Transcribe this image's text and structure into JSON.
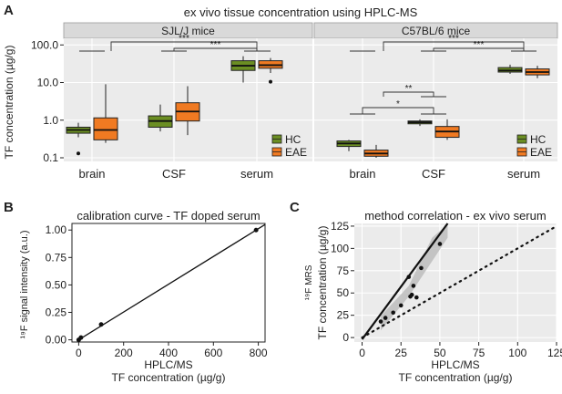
{
  "colors": {
    "hc": "#6b8e23",
    "eae": "#f07a22",
    "panel_bg": "#ebebeb",
    "strip_bg": "#d9d9d9"
  },
  "panel_a": {
    "letter": "A",
    "title": "ex vivo tissue concentration using HPLC-MS",
    "ylabel": "TF concentration (µg/g)",
    "ticks": [
      "100.0",
      "10.0",
      "1.0",
      "0.1"
    ],
    "legend": [
      "HC",
      "EAE"
    ],
    "facets": [
      {
        "strip": "SJL/J mice",
        "categories": [
          "brain",
          "CSF",
          "serum"
        ],
        "sig_labels": [
          "***",
          "***"
        ],
        "boxes": [
          {
            "cat": 0,
            "group": "HC",
            "q": [
              0.35,
              0.45,
              0.55,
              0.65,
              0.85
            ],
            "out": [
              0.13
            ]
          },
          {
            "cat": 0,
            "group": "EAE",
            "q": [
              0.25,
              0.3,
              0.55,
              1.15,
              9.0
            ],
            "out": []
          },
          {
            "cat": 1,
            "group": "HC",
            "q": [
              0.5,
              0.65,
              0.95,
              1.3,
              2.6
            ],
            "out": []
          },
          {
            "cat": 1,
            "group": "EAE",
            "q": [
              0.4,
              0.95,
              1.7,
              2.9,
              8.0
            ],
            "out": []
          },
          {
            "cat": 2,
            "group": "HC",
            "q": [
              10.0,
              21.0,
              28.0,
              38.0,
              50.0
            ],
            "out": []
          },
          {
            "cat": 2,
            "group": "EAE",
            "q": [
              18.0,
              24.0,
              29.0,
              38.0,
              45.0
            ],
            "out": [
              10.5
            ]
          }
        ]
      },
      {
        "strip": "C57BL/6 mice",
        "categories": [
          "brain",
          "CSF",
          "serum"
        ],
        "sig_labels": [
          "***",
          "***",
          "*",
          "**"
        ],
        "boxes": [
          {
            "cat": 0,
            "group": "HC",
            "q": [
              0.15,
              0.2,
              0.24,
              0.28,
              0.3
            ],
            "out": []
          },
          {
            "cat": 0,
            "group": "EAE",
            "q": [
              0.1,
              0.11,
              0.13,
              0.16,
              0.22
            ],
            "out": []
          },
          {
            "cat": 1,
            "group": "HC",
            "q": [
              0.7,
              0.8,
              0.88,
              0.95,
              1.05
            ],
            "out": []
          },
          {
            "cat": 1,
            "group": "EAE",
            "q": [
              0.3,
              0.35,
              0.5,
              0.68,
              1.05
            ],
            "out": []
          },
          {
            "cat": 2,
            "group": "HC",
            "q": [
              17.0,
              19.0,
              21.0,
              25.0,
              30.0
            ],
            "out": []
          },
          {
            "cat": 2,
            "group": "EAE",
            "q": [
              13.0,
              16.0,
              19.0,
              23.0,
              28.0
            ],
            "out": []
          }
        ]
      }
    ]
  },
  "panel_b": {
    "letter": "B",
    "title": "calibration curve - TF doped serum",
    "ylabel": "¹⁹F signal intensity (a.u.)",
    "xlabel1": "HPLC/MS",
    "xlabel2": "TF concentration (µg/g)",
    "xticks": [
      "0",
      "200",
      "400",
      "600",
      "800"
    ],
    "yticks": [
      "0.00",
      "0.25",
      "0.50",
      "0.75",
      "1.00"
    ]
  },
  "panel_c": {
    "letter": "C",
    "title": "method correlation - ex vivo serum",
    "ylabel1": "¹⁹F MRS",
    "ylabel2": "TF concentration (µg/g)",
    "xlabel1": "HPLC/MS",
    "xlabel2": "TF concentration (µg/g)",
    "xticks": [
      "0",
      "25",
      "50",
      "75",
      "100",
      "125"
    ],
    "yticks": [
      "0",
      "25",
      "50",
      "75",
      "100",
      "125"
    ]
  },
  "chart_data": [
    {
      "type": "box",
      "title": "ex vivo tissue concentration using HPLC-MS",
      "ylabel": "TF concentration (µg/g)",
      "yscale": "log",
      "ylim": [
        0.08,
        150
      ],
      "facets": [
        "SJL/J mice",
        "C57BL/6 mice"
      ],
      "categories": [
        "brain",
        "CSF",
        "serum"
      ],
      "legend": [
        "HC",
        "EAE"
      ]
    },
    {
      "type": "scatter",
      "title": "calibration curve - TF doped serum",
      "x": [
        0,
        10,
        100,
        790
      ],
      "y": [
        0.0,
        0.02,
        0.14,
        1.0
      ],
      "xlim": [
        -30,
        830
      ],
      "ylim": [
        -0.02,
        1.06
      ],
      "fit_line": {
        "x": [
          0,
          830
        ],
        "y": [
          0.0,
          1.05
        ]
      }
    },
    {
      "type": "scatter",
      "title": "method correlation - ex vivo serum",
      "x": [
        12,
        15,
        20,
        25,
        30,
        31,
        32,
        33,
        35,
        38,
        50
      ],
      "y": [
        18,
        22,
        28,
        36,
        68,
        46,
        48,
        58,
        45,
        78,
        105
      ],
      "xlim": [
        -5,
        125
      ],
      "ylim": [
        -5,
        128
      ],
      "regression": {
        "x": [
          0,
          55
        ],
        "y": [
          -2,
          128
        ]
      },
      "identity": {
        "x": [
          0,
          125
        ],
        "y": [
          0,
          125
        ]
      }
    }
  ]
}
